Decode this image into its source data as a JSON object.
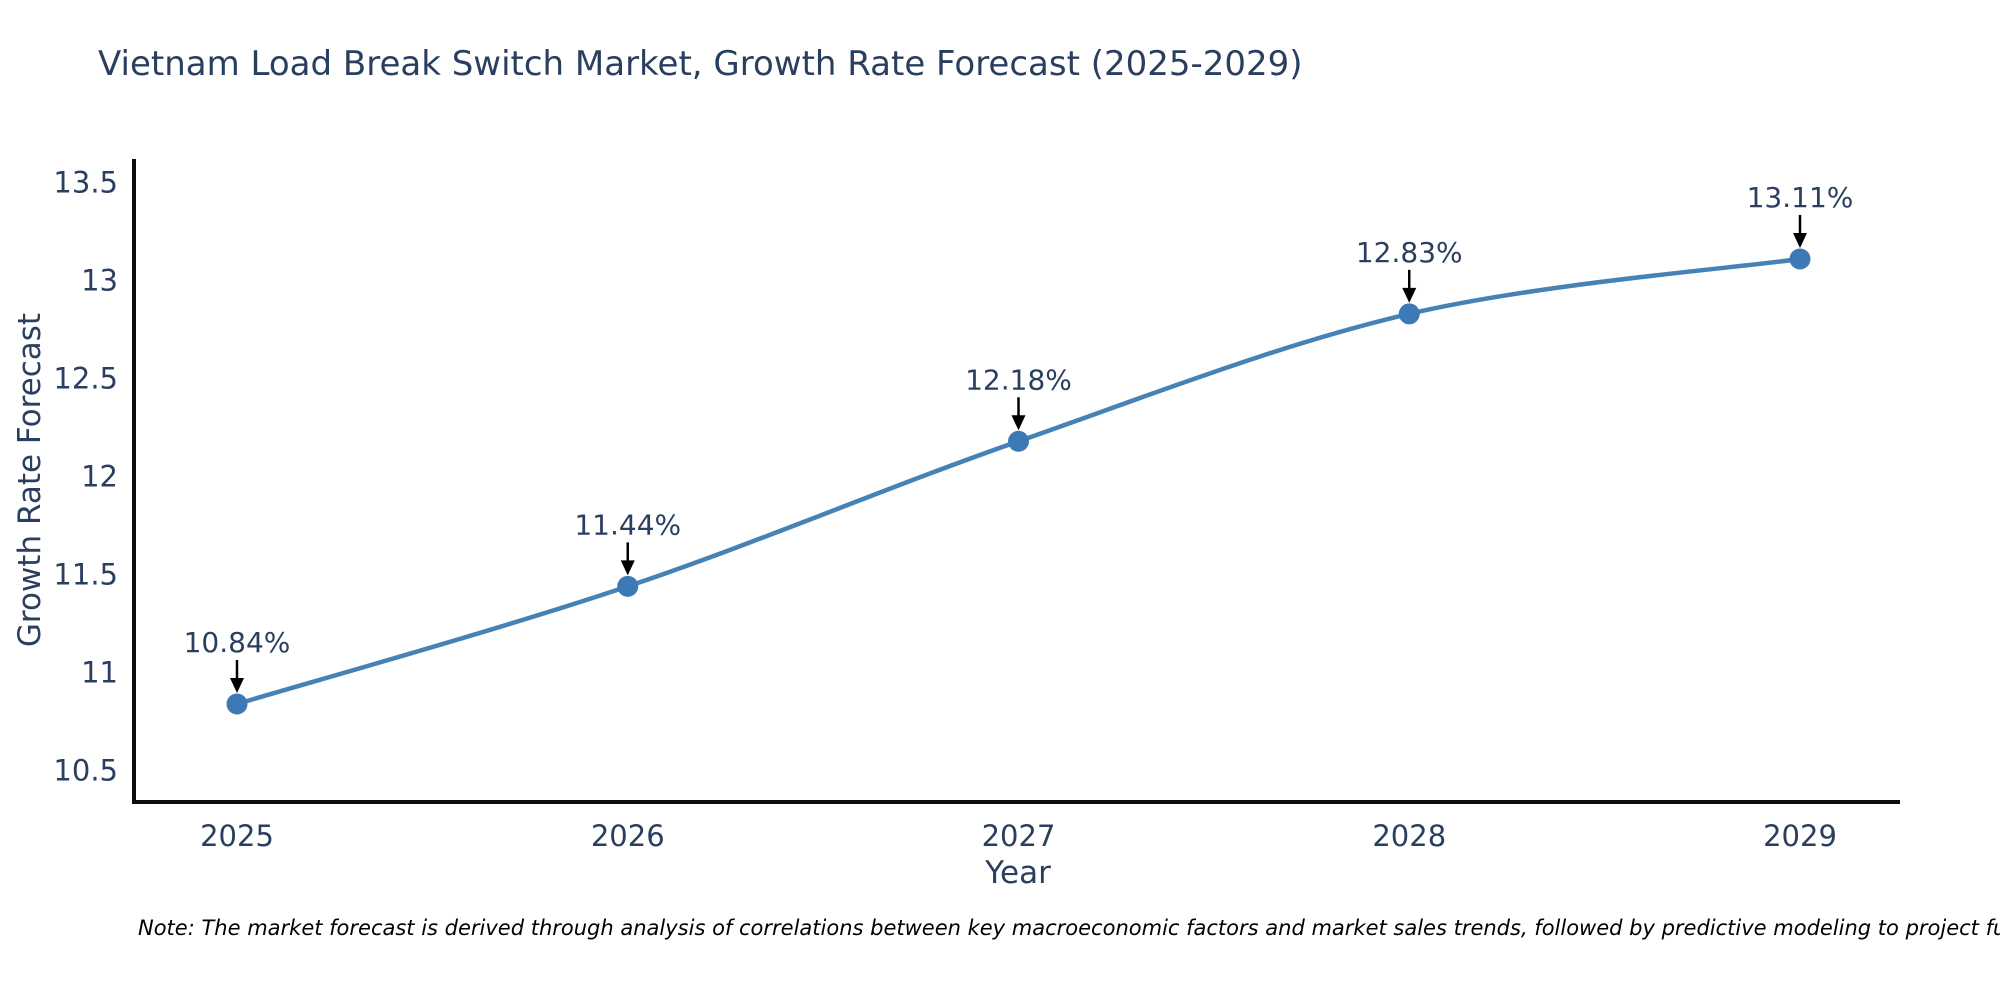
{
  "chart": {
    "note": "Note: The market forecast is derived through analysis of correlations between key macroeconomic factors and market sales trends, followed by predictive modeling to project future sales.",
    "colors": {
      "line": "#4682b4",
      "marker": "#3d7ab5",
      "text": "#2a3f5f",
      "axis": "#0d0d0d",
      "annotation": "#2a3f5f",
      "arrow": "#000000"
    }
  },
  "chart_data": {
    "type": "line",
    "title": "Vietnam Load Break Switch Market, Growth Rate Forecast (2025-2029)",
    "x": [
      2025,
      2026,
      2027,
      2028,
      2029
    ],
    "xticklabels": [
      "2025",
      "2026",
      "2027",
      "2028",
      "2029"
    ],
    "values": [
      10.84,
      11.44,
      12.18,
      12.83,
      13.11
    ],
    "point_labels": [
      "10.84%",
      "11.44%",
      "12.18%",
      "12.83%",
      "13.11%"
    ],
    "xlabel": "Year",
    "ylabel": "Growth Rate Forecast",
    "ylim": [
      10.34,
      13.62
    ],
    "yticks": [
      13.5,
      13,
      12.5,
      12,
      11.5,
      11,
      10.5
    ],
    "grid": false,
    "legend": null,
    "line_shape": "spline",
    "annotations_arrow": true
  }
}
